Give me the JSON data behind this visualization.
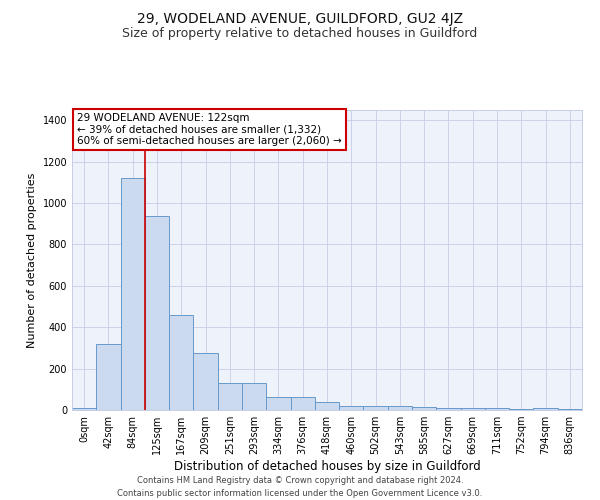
{
  "title": "29, WODELAND AVENUE, GUILDFORD, GU2 4JZ",
  "subtitle": "Size of property relative to detached houses in Guildford",
  "xlabel": "Distribution of detached houses by size in Guildford",
  "ylabel": "Number of detached properties",
  "bar_labels": [
    "0sqm",
    "42sqm",
    "84sqm",
    "125sqm",
    "167sqm",
    "209sqm",
    "251sqm",
    "293sqm",
    "334sqm",
    "376sqm",
    "418sqm",
    "460sqm",
    "502sqm",
    "543sqm",
    "585sqm",
    "627sqm",
    "669sqm",
    "711sqm",
    "752sqm",
    "794sqm",
    "836sqm"
  ],
  "bar_values": [
    10,
    320,
    1120,
    940,
    460,
    275,
    130,
    130,
    65,
    65,
    40,
    20,
    20,
    20,
    15,
    10,
    10,
    10,
    5,
    10,
    5
  ],
  "bar_color": "#ccdaf0",
  "bar_edge_color": "#6699cc",
  "annotation_text": "29 WODELAND AVENUE: 122sqm\n← 39% of detached houses are smaller (1,332)\n60% of semi-detached houses are larger (2,060) →",
  "annotation_box_color": "#ffffff",
  "annotation_box_edge": "#cc0000",
  "red_line_color": "#cc0000",
  "ylim": [
    0,
    1450
  ],
  "yticks": [
    0,
    200,
    400,
    600,
    800,
    1000,
    1200,
    1400
  ],
  "footer_line1": "Contains HM Land Registry data © Crown copyright and database right 2024.",
  "footer_line2": "Contains public sector information licensed under the Open Government Licence v3.0.",
  "bg_color": "#eef2fb",
  "grid_color": "#c5cde8",
  "title_fontsize": 10,
  "subtitle_fontsize": 9,
  "tick_fontsize": 7,
  "ylabel_fontsize": 8,
  "xlabel_fontsize": 8.5,
  "annotation_fontsize": 7.5,
  "footer_fontsize": 6
}
